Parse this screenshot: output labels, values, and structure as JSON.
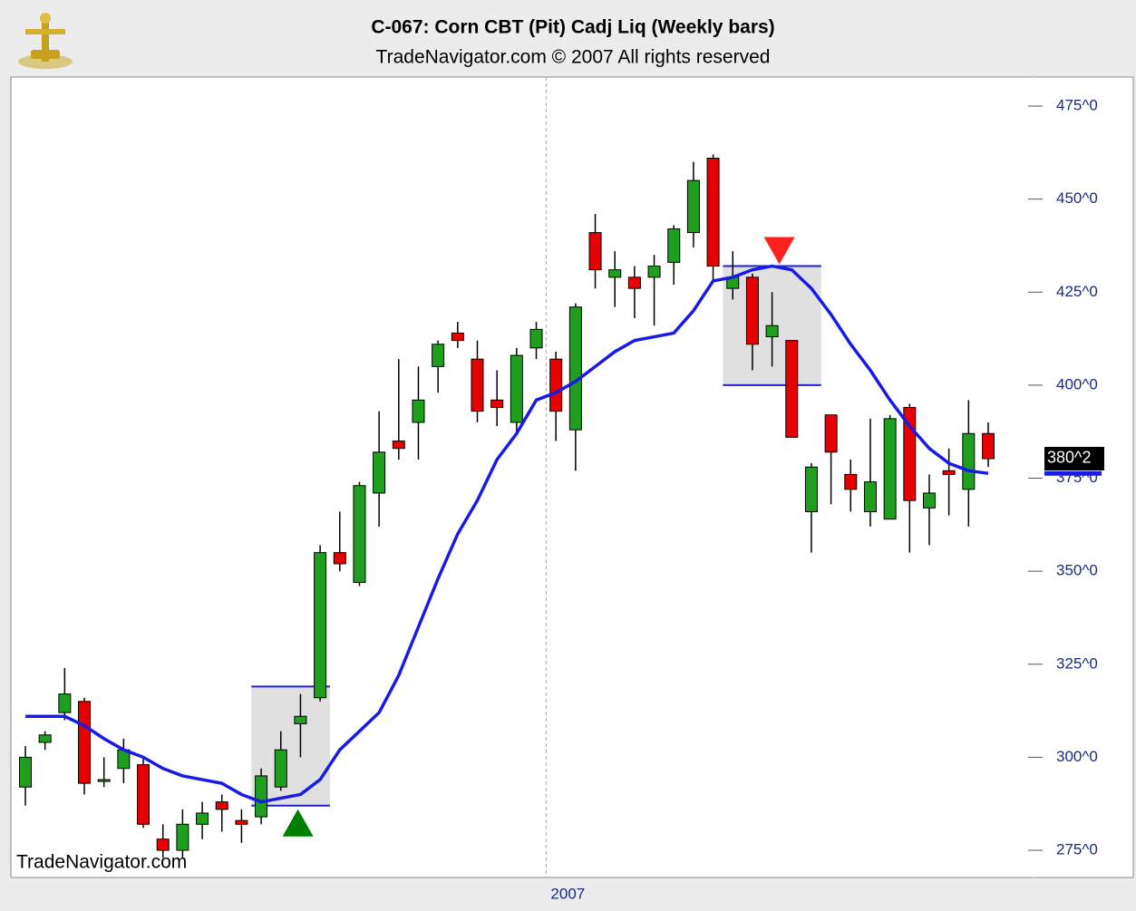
{
  "chart_data": {
    "type": "candlestick",
    "title": "C-067:  Corn CBT (Pit) Cadj Liq  (Weekly bars)",
    "subtitle": "TradeNavigator.com © 2007 All rights reserved",
    "watermark": "TradeNavigator.com",
    "categories": [
      null,
      null,
      null,
      null,
      null,
      null,
      null,
      null,
      null,
      null,
      null,
      null,
      null,
      null,
      null,
      null,
      null,
      null,
      null,
      null,
      null,
      null,
      null,
      null,
      null,
      null,
      null,
      "2007",
      null,
      null,
      null,
      null,
      null,
      null,
      null,
      null,
      null,
      null,
      null,
      null,
      null,
      null,
      null,
      null,
      null,
      null,
      null,
      null,
      null,
      null
    ],
    "open": [
      292,
      304,
      312,
      315,
      294,
      297,
      298,
      278,
      275,
      282,
      288,
      283,
      284,
      292,
      309,
      316,
      355,
      347,
      371,
      385,
      390,
      405,
      414,
      407,
      396,
      390,
      410,
      407,
      388,
      441,
      429,
      429,
      429,
      433,
      441,
      461,
      426,
      429,
      413,
      412,
      366,
      392,
      376,
      366,
      364,
      394,
      367,
      377,
      372,
      387
    ],
    "high": [
      303,
      307,
      324,
      316,
      300,
      305,
      300,
      282,
      286,
      288,
      290,
      286,
      297,
      307,
      317,
      357,
      366,
      374,
      393,
      407,
      405,
      412,
      417,
      412,
      404,
      410,
      417,
      409,
      422,
      446,
      436,
      432,
      435,
      443,
      460,
      462,
      436,
      430,
      425,
      412,
      379,
      392,
      380,
      391,
      392,
      395,
      376,
      383,
      396,
      390
    ],
    "low": [
      287,
      302,
      310,
      290,
      292,
      293,
      281,
      273,
      273,
      278,
      280,
      277,
      282,
      291,
      300,
      315,
      350,
      346,
      362,
      380,
      380,
      398,
      410,
      390,
      389,
      387,
      407,
      385,
      377,
      426,
      421,
      418,
      416,
      427,
      437,
      428,
      423,
      404,
      405,
      386,
      355,
      368,
      366,
      362,
      364,
      355,
      357,
      365,
      362,
      378
    ],
    "close": [
      300,
      306,
      317,
      293,
      294,
      302,
      282,
      275,
      282,
      285,
      286,
      282,
      295,
      302,
      311,
      355,
      352,
      373,
      382,
      383,
      396,
      411,
      412,
      393,
      394,
      408,
      415,
      393,
      421,
      431,
      431,
      426,
      432,
      442,
      455,
      432,
      429,
      411,
      416,
      386,
      378,
      382,
      372,
      374,
      391,
      369,
      371,
      376,
      387,
      380.25
    ],
    "up_color": "#1ea01e",
    "down_color": "#e60000",
    "ma": {
      "color": "#1a1ae6",
      "values": [
        311,
        311,
        311,
        308.5,
        305,
        302,
        300,
        297,
        295,
        294,
        293,
        290,
        288,
        289,
        290,
        294,
        302,
        307,
        312,
        322,
        335,
        348,
        360,
        369,
        380,
        387,
        396,
        398,
        401,
        405,
        409,
        412,
        413,
        414,
        420,
        428,
        429,
        431,
        432,
        431,
        426,
        419,
        411,
        404,
        396,
        389,
        383,
        379,
        377,
        376.3
      ]
    },
    "boxes": [
      {
        "from": 12,
        "to": 15,
        "high": 319,
        "low": 287,
        "signal": "buy",
        "color": "#008000"
      },
      {
        "from": 36,
        "to": 40,
        "high": 432,
        "low": 400,
        "signal": "sell",
        "color": "#ff2020"
      }
    ],
    "last_price": {
      "value": 380.25,
      "label": "380^2"
    },
    "ylim": [
      267.7,
      482.8
    ],
    "yticks": [
      {
        "value": 275,
        "label": "275^0"
      },
      {
        "value": 300,
        "label": "300^0"
      },
      {
        "value": 325,
        "label": "325^0"
      },
      {
        "value": 350,
        "label": "350^0"
      },
      {
        "value": 375,
        "label": "375^0"
      },
      {
        "value": 400,
        "label": "400^0"
      },
      {
        "value": 425,
        "label": "425^0"
      },
      {
        "value": 450,
        "label": "450^0"
      },
      {
        "value": 475,
        "label": "475^0"
      }
    ]
  }
}
